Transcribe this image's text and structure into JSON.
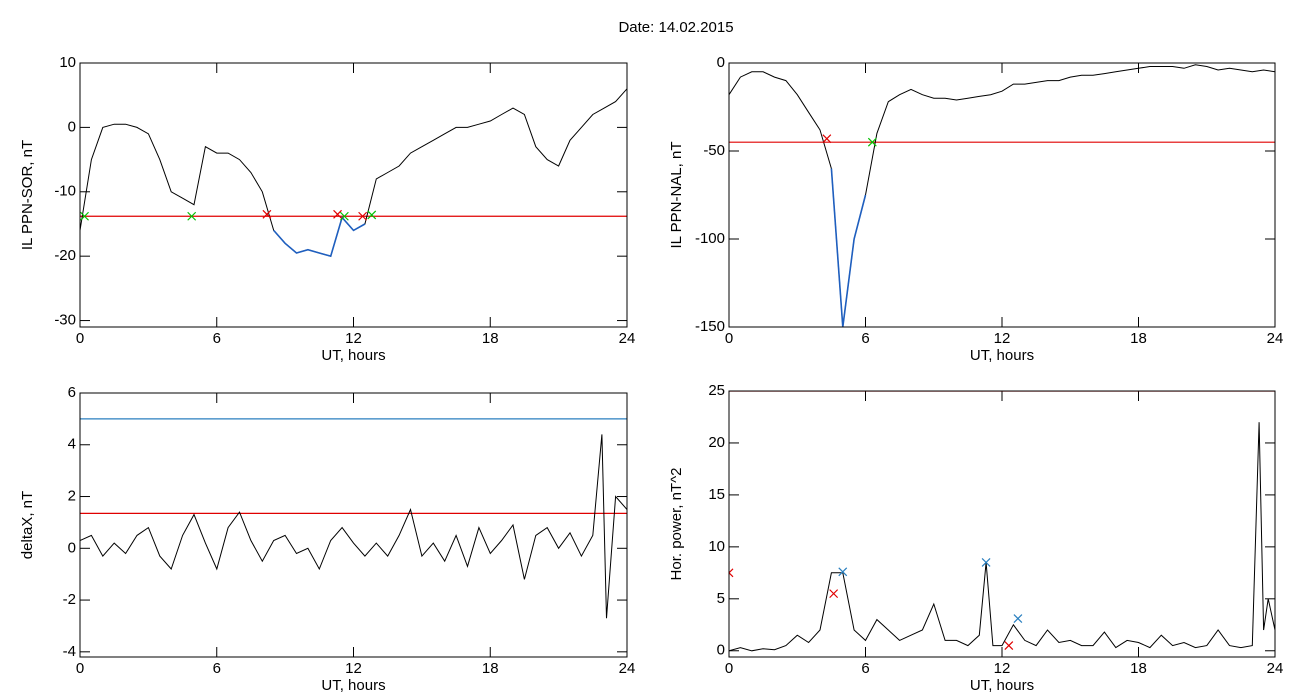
{
  "title": "Date:  14.02.2015",
  "chart_data": [
    {
      "type": "line",
      "ylabel": "IL PPN-SOR, nT",
      "xlabel": "UT, hours",
      "xlim": [
        0,
        24
      ],
      "xticks": [
        0,
        6,
        12,
        18,
        24
      ],
      "ylim": [
        -31,
        10
      ],
      "yticks": [
        -30,
        -20,
        -10,
        0,
        10
      ],
      "x": [
        0,
        0.5,
        1,
        1.5,
        2,
        2.5,
        3,
        3.5,
        4,
        4.5,
        5,
        5.5,
        6,
        6.5,
        7,
        7.5,
        8,
        8.5,
        9,
        9.5,
        10,
        10.5,
        11,
        11.5,
        12,
        12.5,
        13,
        13.5,
        14,
        14.5,
        15,
        15.5,
        16,
        16.5,
        17,
        17.5,
        18,
        18.5,
        19,
        19.5,
        20,
        20.5,
        21,
        21.5,
        22,
        22.5,
        23,
        23.5,
        24
      ],
      "series": [
        {
          "color": "#000000",
          "values": [
            -16,
            -5,
            0,
            0.5,
            0.5,
            0,
            -1,
            -5,
            -10,
            -11,
            -12,
            -3,
            -4,
            -4,
            -5,
            -7,
            -10,
            -16,
            -18,
            -19.5,
            -19,
            -19.5,
            -20,
            -14,
            -16,
            -15,
            -8,
            -7,
            -6,
            -4,
            -3,
            -2,
            -1,
            0,
            0,
            0.5,
            1,
            2,
            3,
            2,
            -3,
            -5,
            -6,
            -2,
            0,
            2,
            3,
            4,
            6
          ]
        },
        {
          "color": "#1f5fbf",
          "values": [
            -16,
            null,
            null,
            null,
            null,
            null,
            null,
            null,
            null,
            null,
            null,
            null,
            null,
            null,
            null,
            null,
            null,
            -16,
            -18,
            -19.5,
            -19,
            -19.5,
            -20,
            -14,
            -16,
            -15,
            null,
            null,
            null,
            null,
            null,
            null,
            null,
            null,
            null,
            null,
            null,
            null,
            null,
            null,
            null,
            null,
            null,
            null,
            null,
            null,
            null,
            null,
            null
          ]
        }
      ],
      "hlines": [
        {
          "value": -13.8,
          "color": "#e00000"
        }
      ],
      "markers": {
        "x": [
          0.2,
          4.9,
          8.2,
          11.3,
          11.6,
          12.4,
          12.8
        ],
        "y": [
          -13.8,
          -13.8,
          -13.5,
          -13.5,
          -13.8,
          -13.8,
          -13.6
        ],
        "color": [
          "#00c000",
          "#00c000",
          "#e00000",
          "#e00000",
          "#00c000",
          "#e00000",
          "#00c000"
        ]
      }
    },
    {
      "type": "line",
      "ylabel": "IL PPN-NAL, nT",
      "xlabel": "UT, hours",
      "xlim": [
        0,
        24
      ],
      "xticks": [
        0,
        6,
        12,
        18,
        24
      ],
      "ylim": [
        -150,
        0
      ],
      "yticks": [
        -150,
        -100,
        -50,
        0
      ],
      "x": [
        0,
        0.5,
        1,
        1.5,
        2,
        2.5,
        3,
        3.5,
        4,
        4.5,
        5,
        5.5,
        6,
        6.5,
        7,
        7.5,
        8,
        8.5,
        9,
        9.5,
        10,
        10.5,
        11,
        11.5,
        12,
        12.5,
        13,
        13.5,
        14,
        14.5,
        15,
        15.5,
        16,
        16.5,
        17,
        17.5,
        18,
        18.5,
        19,
        19.5,
        20,
        20.5,
        21,
        21.5,
        22,
        22.5,
        23,
        23.5,
        24
      ],
      "series": [
        {
          "color": "#000000",
          "values": [
            -18,
            -8,
            -5,
            -5,
            -8,
            -10,
            -18,
            -28,
            -38,
            -60,
            -150,
            -100,
            -75,
            -40,
            -22,
            -18,
            -15,
            -18,
            -20,
            -20,
            -21,
            -20,
            -19,
            -18,
            -16,
            -12,
            -12,
            -11,
            -10,
            -10,
            -8,
            -7,
            -7,
            -6,
            -5,
            -4,
            -3,
            -2,
            -2,
            -2,
            -3,
            -1,
            -2,
            -4,
            -3,
            -4,
            -5,
            -4,
            -5
          ]
        },
        {
          "color": "#1f5fbf",
          "values": [
            null,
            null,
            null,
            null,
            null,
            null,
            null,
            null,
            null,
            -60,
            -150,
            -100,
            -75,
            null,
            null,
            null,
            null,
            null,
            null,
            null,
            null,
            null,
            null,
            null,
            null,
            null,
            null,
            null,
            null,
            null,
            null,
            null,
            null,
            null,
            null,
            null,
            null,
            null,
            null,
            null,
            null,
            null,
            null,
            null,
            null,
            null,
            null,
            null,
            null
          ]
        }
      ],
      "hlines": [
        {
          "value": -45,
          "color": "#e00000"
        }
      ],
      "markers": {
        "x": [
          4.3,
          6.3
        ],
        "y": [
          -43,
          -45
        ],
        "color": [
          "#e00000",
          "#00c000"
        ]
      }
    },
    {
      "type": "line",
      "ylabel": "deltaX, nT",
      "xlabel": "UT, hours",
      "xlim": [
        0,
        24
      ],
      "xticks": [
        0,
        6,
        12,
        18,
        24
      ],
      "ylim": [
        -4.2,
        6
      ],
      "yticks": [
        -4,
        -2,
        0,
        2,
        4,
        6
      ],
      "x": [
        0,
        0.5,
        1,
        1.5,
        2,
        2.5,
        3,
        3.5,
        4,
        4.5,
        5,
        5.5,
        6,
        6.5,
        7,
        7.5,
        8,
        8.5,
        9,
        9.5,
        10,
        10.5,
        11,
        11.5,
        12,
        12.5,
        13,
        13.5,
        14,
        14.5,
        15,
        15.5,
        16,
        16.5,
        17,
        17.5,
        18,
        18.5,
        19,
        19.5,
        20,
        20.5,
        21,
        21.5,
        22,
        22.5,
        22.9,
        23.1,
        23.5,
        24
      ],
      "series": [
        {
          "color": "#000000",
          "values": [
            0.3,
            0.5,
            -0.3,
            0.2,
            -0.2,
            0.5,
            0.8,
            -0.3,
            -0.8,
            0.5,
            1.3,
            0.2,
            -0.8,
            0.8,
            1.4,
            0.3,
            -0.5,
            0.3,
            0.5,
            -0.2,
            0,
            -0.8,
            0.3,
            0.8,
            0.2,
            -0.3,
            0.2,
            -0.3,
            0.5,
            1.5,
            -0.3,
            0.2,
            -0.5,
            0.5,
            -0.7,
            0.8,
            -0.2,
            0.3,
            0.9,
            -1.2,
            0.5,
            0.8,
            0,
            0.6,
            -0.3,
            0.5,
            4.4,
            -2.7,
            2,
            1.5
          ]
        }
      ],
      "hlines": [
        {
          "value": 5,
          "color": "#2a7fbf"
        },
        {
          "value": 1.35,
          "color": "#e00000"
        }
      ]
    },
    {
      "type": "line",
      "ylabel": "Hor. power, nT^2",
      "xlabel": "UT, hours",
      "xlim": [
        0,
        24
      ],
      "xticks": [
        0,
        6,
        12,
        18,
        24
      ],
      "ylim": [
        -0.6,
        25
      ],
      "yticks": [
        0,
        5,
        10,
        15,
        20,
        25
      ],
      "x": [
        0,
        0.5,
        1,
        1.5,
        2,
        2.5,
        3,
        3.5,
        4,
        4.5,
        5,
        5.5,
        6,
        6.5,
        7,
        7.5,
        8,
        8.5,
        9,
        9.5,
        10,
        10.5,
        11,
        11.3,
        11.6,
        12,
        12.5,
        13,
        13.5,
        14,
        14.5,
        15,
        15.5,
        16,
        16.5,
        17,
        17.5,
        18,
        18.5,
        19,
        19.5,
        20,
        20.5,
        21,
        21.5,
        22,
        22.5,
        23,
        23.3,
        23.5,
        23.7,
        24
      ],
      "series": [
        {
          "color": "#000000",
          "values": [
            0,
            0.3,
            0,
            0.2,
            0.1,
            0.5,
            1.5,
            0.8,
            2,
            7.5,
            7.5,
            2,
            1,
            3,
            2,
            1,
            1.5,
            2,
            4.5,
            1,
            1,
            0.5,
            1.5,
            8.5,
            0.5,
            0.5,
            2.5,
            1,
            0.5,
            2,
            0.8,
            1,
            0.5,
            0.5,
            1.8,
            0.3,
            1,
            0.8,
            0.3,
            1.5,
            0.5,
            0.8,
            0.3,
            0.5,
            2,
            0.5,
            0.3,
            0.5,
            22,
            2,
            5,
            2
          ]
        }
      ],
      "hlines": [
        {
          "value": 25,
          "color": "#e00000"
        }
      ],
      "markers": {
        "x": [
          0,
          5.0,
          11.3,
          12.7,
          4.6,
          12.3
        ],
        "y": [
          7.5,
          7.6,
          8.5,
          3.1,
          5.5,
          0.5
        ],
        "color": [
          "#e00000",
          "#2a7fbf",
          "#2a7fbf",
          "#2a7fbf",
          "#e00000",
          "#e00000"
        ]
      }
    }
  ]
}
